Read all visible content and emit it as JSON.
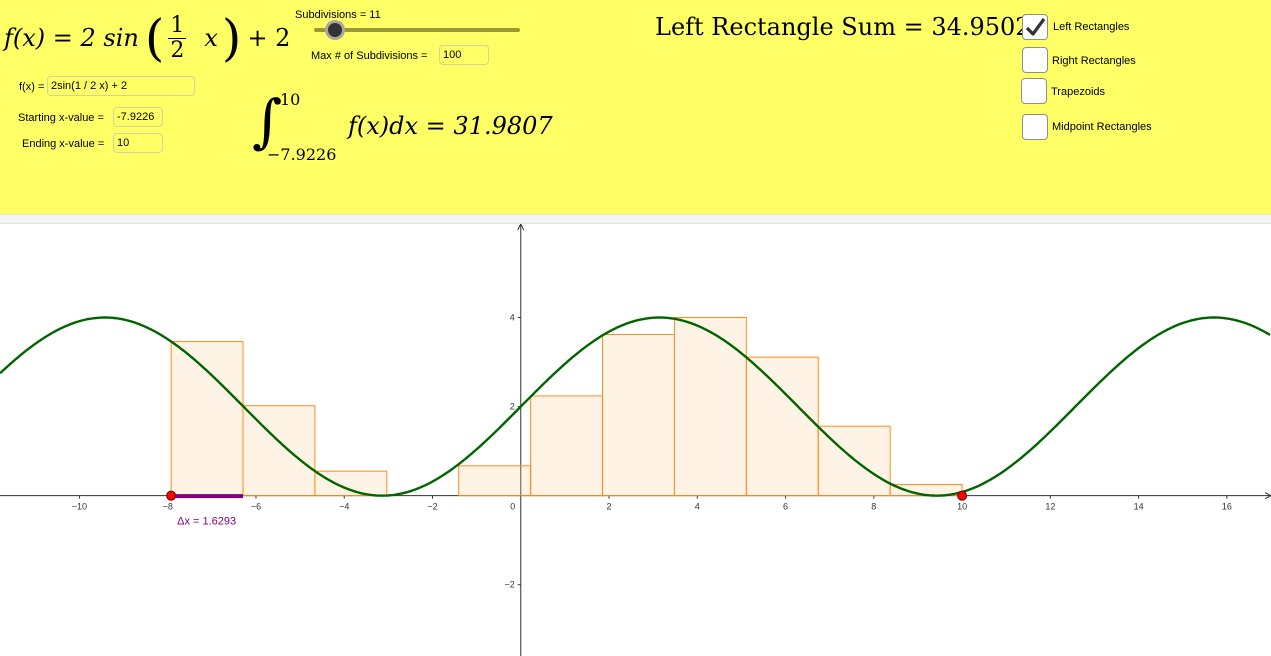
{
  "formula": {
    "lhs": "f(x) = 2 sin",
    "frac_num": "1",
    "frac_den": "2",
    "var": "x",
    "tail": "+ 2"
  },
  "slider": {
    "label": "Subdivisions = 11",
    "value": 11,
    "min": 1,
    "max": 100
  },
  "max_subdivisions": {
    "label": "Max # of Subdivisions =",
    "value": "100"
  },
  "fx_input": {
    "label": "f(x) =",
    "value": "2sin(1 / 2 x) + 2"
  },
  "start_input": {
    "label": "Starting x-value =",
    "value": "-7.9226"
  },
  "end_input": {
    "label": "Ending x-value =",
    "value": "10"
  },
  "integral": {
    "upper": "10",
    "lower": "−7.9226",
    "body": "f(x)dx = 31.9807"
  },
  "sum_text": "Left Rectangle Sum = 34.9502",
  "checkboxes": [
    {
      "label": "Left Rectangles",
      "checked": true
    },
    {
      "label": "Right Rectangles",
      "checked": false
    },
    {
      "label": "Trapezoids",
      "checked": false
    },
    {
      "label": "Midpoint Rectangles",
      "checked": false
    }
  ],
  "graph": {
    "x_ticks": [
      "−10",
      "−8",
      "−6",
      "−4",
      "−2",
      "0",
      "2",
      "4",
      "6",
      "8",
      "10",
      "12",
      "14",
      "16"
    ],
    "y_ticks": [
      "4",
      "2",
      "−2"
    ],
    "dx_label": "Δx = 1.6293",
    "curve_color": "#006400",
    "rect_color": "#ff8c1a",
    "dx_color": "#800080",
    "point_color": "#ff0000"
  },
  "chart_data": {
    "type": "line",
    "function": "2sin(1/2 x) + 2",
    "x_range": [
      -11.8,
      17.0
    ],
    "y_range": [
      -3.6,
      6.1
    ],
    "start": -7.9226,
    "end": 10,
    "n": 11,
    "dx": 1.6293,
    "left_rect_heights": [
      3.46,
      2.02,
      0.55,
      0.0,
      0.67,
      2.24,
      3.62,
      4.0,
      3.11,
      1.56,
      0.25
    ]
  }
}
